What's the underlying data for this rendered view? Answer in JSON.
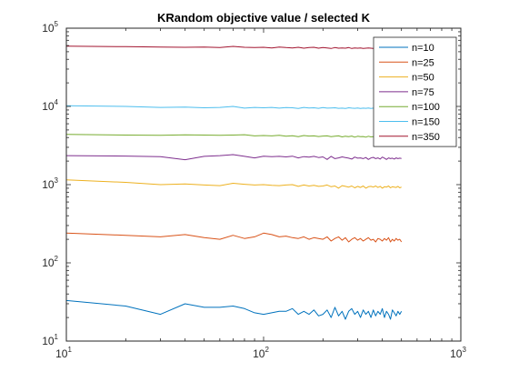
{
  "chart_data": {
    "type": "line",
    "title": "KRandom objective value / selected K",
    "xscale": "log",
    "yscale": "log",
    "xlim": [
      10,
      1000
    ],
    "ylim": [
      10,
      100000
    ],
    "xticks": [
      {
        "base": "10",
        "exp": "1"
      },
      {
        "base": "10",
        "exp": "2"
      },
      {
        "base": "10",
        "exp": "3"
      }
    ],
    "yticks": [
      {
        "base": "10",
        "exp": "1"
      },
      {
        "base": "10",
        "exp": "2"
      },
      {
        "base": "10",
        "exp": "3"
      },
      {
        "base": "10",
        "exp": "4"
      },
      {
        "base": "10",
        "exp": "5"
      }
    ],
    "grid": false,
    "legend_position": "top-right",
    "x": [
      10,
      20,
      30,
      40,
      50,
      60,
      70,
      80,
      90,
      100,
      110,
      120,
      130,
      140,
      150,
      160,
      170,
      180,
      190,
      200,
      210,
      220,
      230,
      240,
      250,
      260,
      270,
      280,
      290,
      300,
      310,
      320,
      330,
      340,
      350,
      360,
      370,
      380,
      390,
      400,
      410,
      420,
      430,
      440,
      450,
      460,
      470,
      480,
      490,
      500
    ],
    "series": [
      {
        "name": "n=10",
        "color": "#0072BD",
        "values": [
          33,
          28,
          22,
          30,
          27,
          27,
          28,
          26,
          23,
          22,
          23,
          24,
          24,
          26,
          22,
          24,
          22,
          25,
          21,
          22,
          25,
          20,
          27,
          21,
          24,
          19,
          24,
          26,
          22,
          24,
          20,
          25,
          22,
          24,
          20,
          25,
          21,
          24,
          22,
          26,
          20,
          24,
          22,
          19,
          25,
          23,
          21,
          24,
          22,
          24
        ]
      },
      {
        "name": "n=25",
        "color": "#D95319",
        "values": [
          240,
          225,
          215,
          230,
          210,
          200,
          225,
          205,
          215,
          240,
          230,
          215,
          220,
          210,
          205,
          215,
          200,
          210,
          205,
          200,
          215,
          190,
          205,
          215,
          195,
          210,
          185,
          200,
          210,
          195,
          205,
          190,
          200,
          210,
          195,
          200,
          185,
          205,
          200,
          190,
          205,
          195,
          210,
          185,
          200,
          190,
          205,
          195,
          200,
          185
        ]
      },
      {
        "name": "n=50",
        "color": "#EDB120",
        "values": [
          1150,
          1070,
          1000,
          1020,
          990,
          970,
          1040,
          1010,
          990,
          1000,
          980,
          970,
          990,
          1000,
          950,
          990,
          960,
          980,
          950,
          960,
          990,
          940,
          960,
          900,
          970,
          950,
          930,
          960,
          910,
          950,
          920,
          960,
          900,
          940,
          950,
          930,
          960,
          920,
          950,
          900,
          940,
          930,
          960,
          910,
          940,
          930,
          920,
          950,
          910,
          930
        ]
      },
      {
        "name": "n=75",
        "color": "#7E2F8E",
        "values": [
          2350,
          2320,
          2280,
          2080,
          2300,
          2350,
          2420,
          2300,
          2200,
          2310,
          2280,
          2300,
          2260,
          2310,
          2200,
          2280,
          2250,
          2300,
          2220,
          2260,
          2100,
          2300,
          2150,
          2200,
          2260,
          2220,
          2180,
          2120,
          2250,
          2180,
          2200,
          2150,
          2220,
          2100,
          2190,
          2230,
          2150,
          2200,
          2120,
          2250,
          2180,
          2100,
          2200,
          2150,
          2180,
          2120,
          2200,
          2150,
          2180,
          2160
        ]
      },
      {
        "name": "n=100",
        "color": "#77AC30",
        "values": [
          4400,
          4300,
          4280,
          4320,
          4300,
          4280,
          4300,
          4350,
          4200,
          4250,
          4200,
          4280,
          4150,
          4220,
          4100,
          4250,
          4180,
          4200,
          4120,
          4180,
          4200,
          4100,
          4150,
          4200,
          4080,
          4150,
          4100,
          4180,
          4050,
          4150,
          4100,
          4120,
          4050,
          4150,
          4080,
          4100,
          4120,
          4050,
          4100,
          4080,
          4120,
          4050,
          4100,
          4080,
          4060,
          4100,
          4050,
          4080,
          4060,
          4080
        ]
      },
      {
        "name": "n=150",
        "color": "#4DBEEE",
        "values": [
          10200,
          10000,
          9700,
          9800,
          9600,
          9700,
          10000,
          9500,
          9700,
          9600,
          9700,
          9500,
          9650,
          9600,
          9400,
          9700,
          9550,
          9600,
          9450,
          9650,
          9500,
          9550,
          9600,
          9450,
          9500,
          9400,
          9600,
          9500,
          9450,
          9550,
          9400,
          9500,
          9450,
          9550,
          9400,
          9500,
          9450,
          9400,
          9500,
          9350,
          9450,
          9500,
          9400,
          9450,
          9350,
          9450,
          9400,
          9450,
          9400,
          9400
        ]
      },
      {
        "name": "n=350",
        "color": "#A2142F",
        "values": [
          59000,
          58000,
          57500,
          57000,
          57500,
          56500,
          58500,
          57000,
          56500,
          57000,
          56000,
          57500,
          56500,
          56000,
          57000,
          55500,
          56500,
          57000,
          55500,
          56500,
          56000,
          55000,
          56500,
          55500,
          56000,
          55500,
          56500,
          55000,
          56000,
          55500,
          56000,
          55000,
          55500,
          56000,
          55500,
          55000,
          56000,
          55500,
          55000,
          55500,
          55000,
          56000,
          55500,
          55000,
          55500,
          55000,
          55500,
          55000,
          55500,
          55000
        ]
      }
    ]
  }
}
